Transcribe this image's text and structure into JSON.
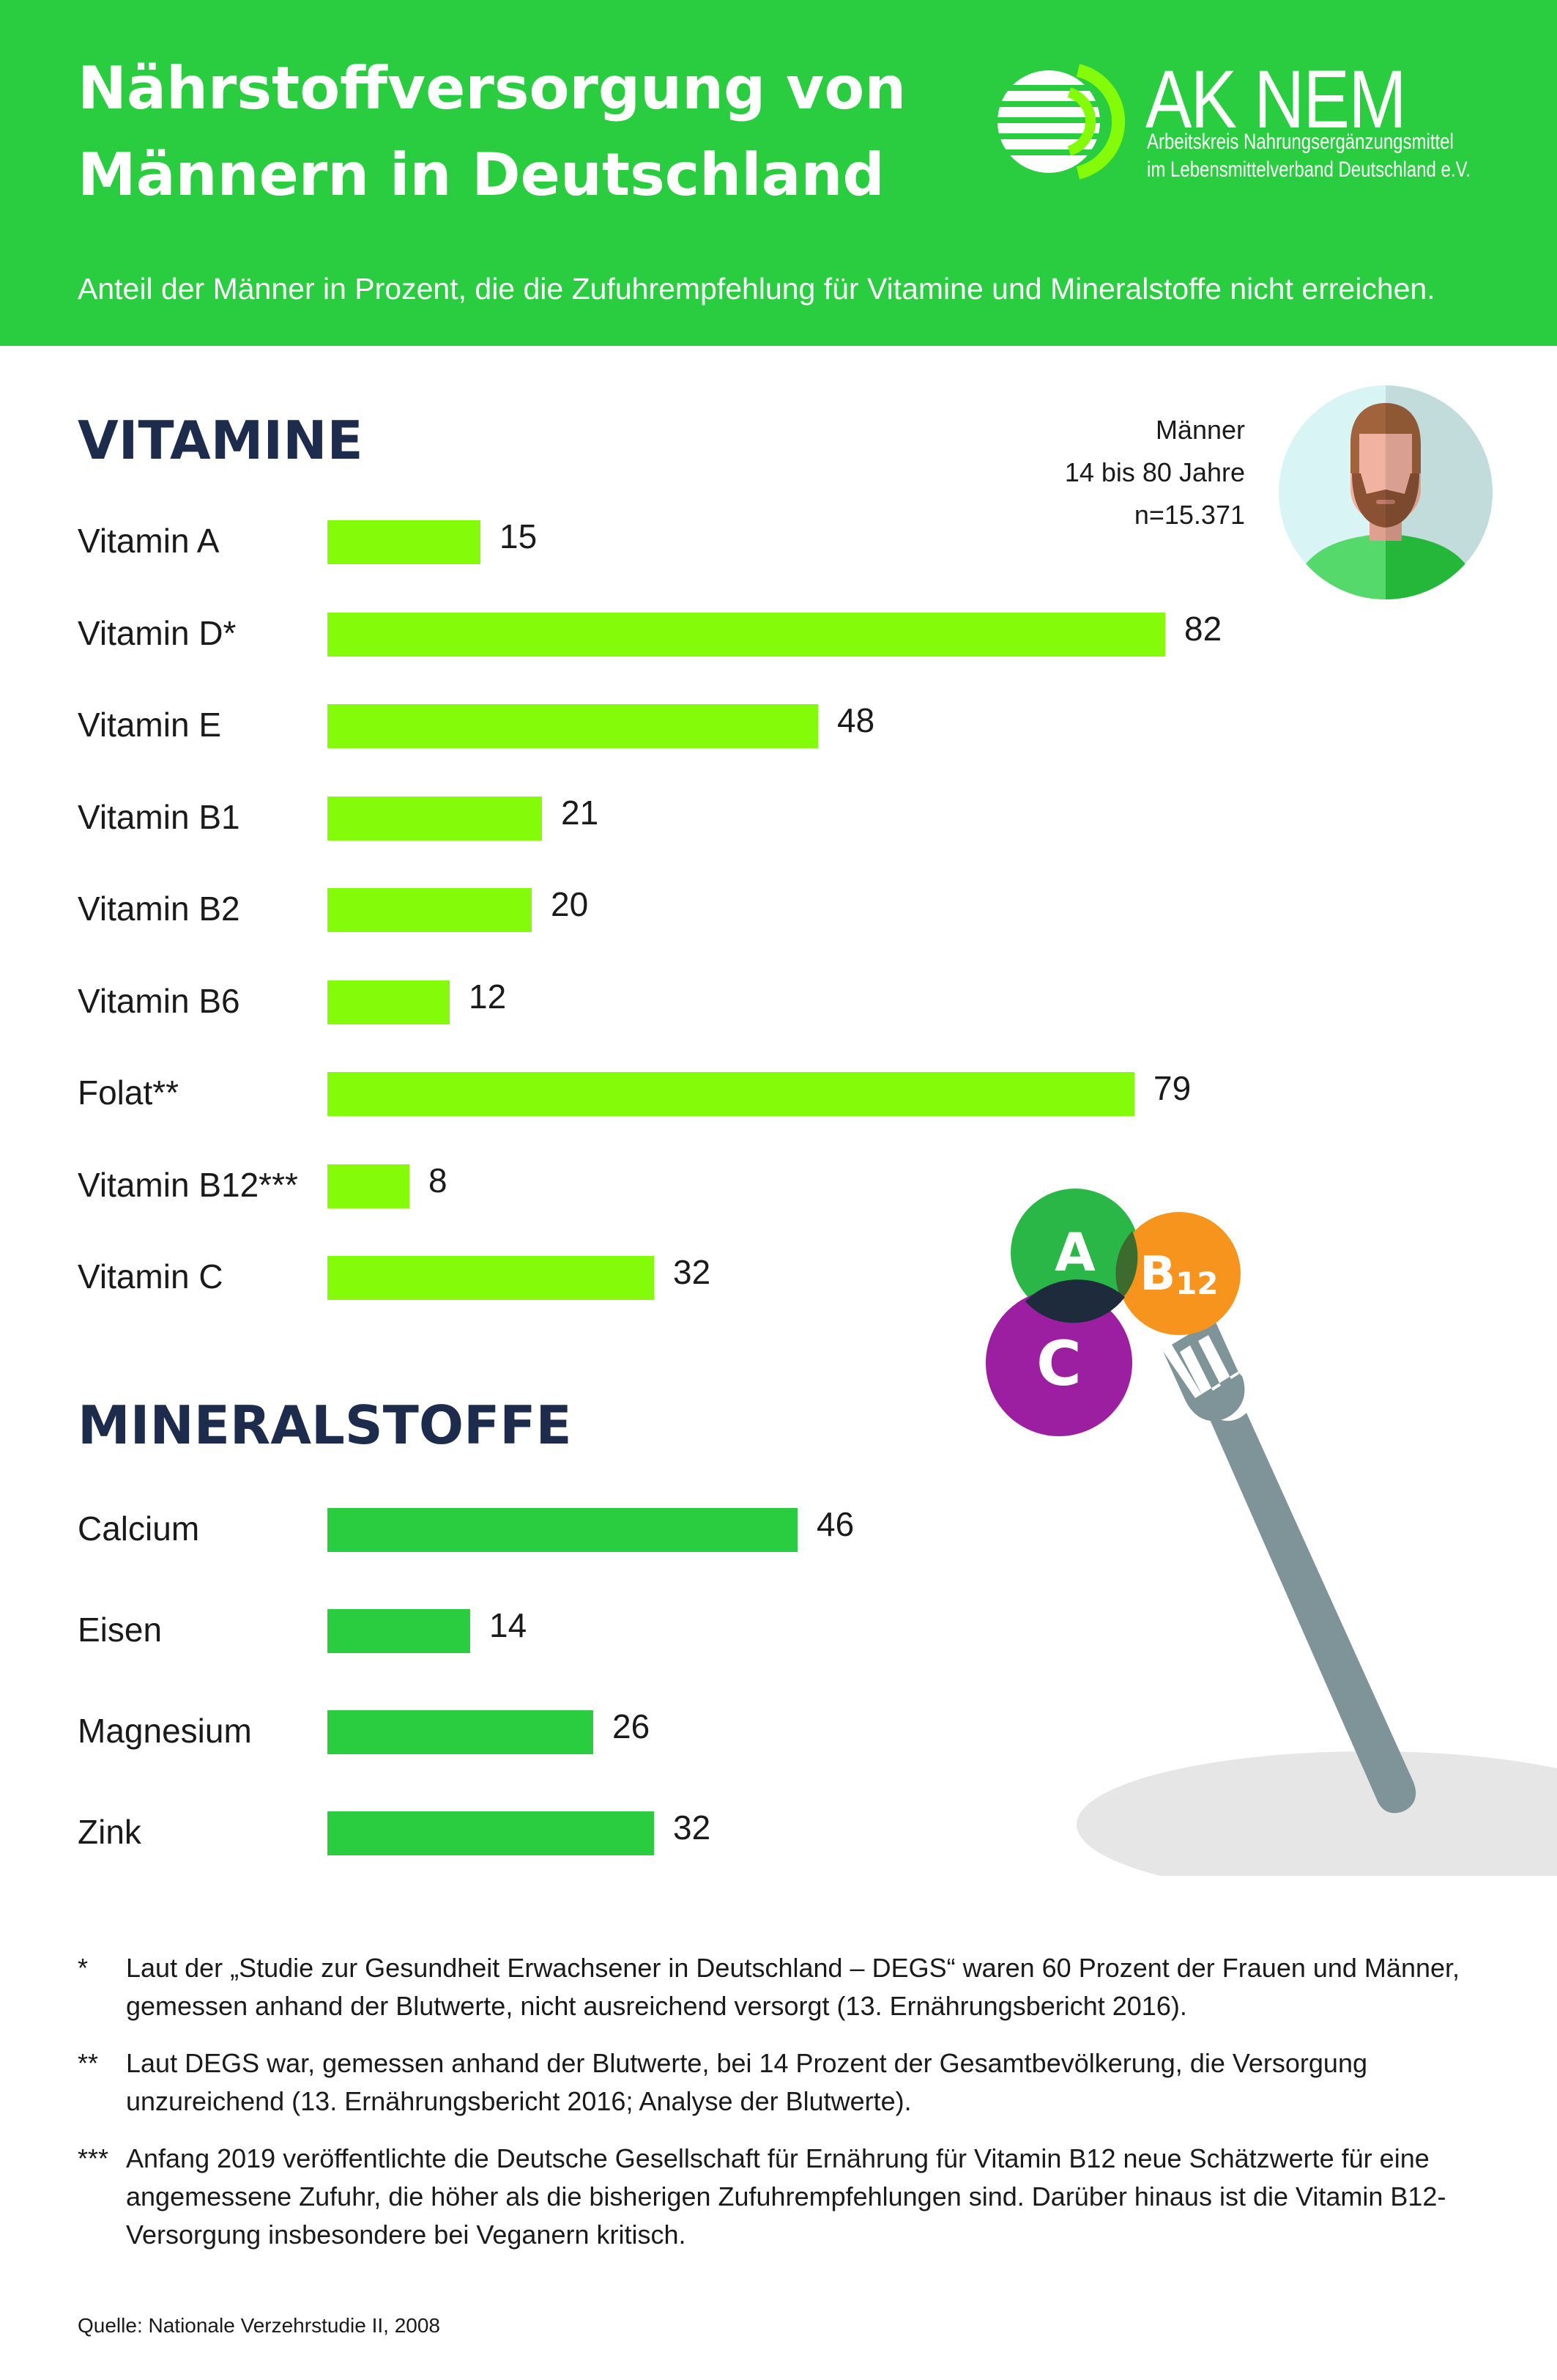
{
  "header": {
    "title_line1": "Nährstoffversorgung von",
    "title_line2": "Männern in Deutschland",
    "subtitle": "Anteil der Männer in Prozent, die die Zufuhrempfehlung für Vitamine und Mineralstoffe nicht erreichen.",
    "logo_name": "AK NEM",
    "logo_line1": "Arbeitskreis Nahrungsergänzungsmittel",
    "logo_line2": "im Lebensmittelverband Deutschland e.V."
  },
  "persona": {
    "line1": "Männer",
    "line2": "14 bis 80 Jahre",
    "line3": "n=15.371"
  },
  "colors": {
    "header_green": "#2acc40",
    "vitamin_bar": "#84fc09",
    "mineral_bar": "#2acc40",
    "heading": "#1d2b4d"
  },
  "chart_data": [
    {
      "type": "bar",
      "title": "VITAMINE",
      "orientation": "horizontal",
      "categories": [
        "Vitamin A",
        "Vitamin D*",
        "Vitamin E",
        "Vitamin B1",
        "Vitamin B2",
        "Vitamin B6",
        "Folat**",
        "Vitamin B12***",
        "Vitamin C"
      ],
      "values": [
        15,
        82,
        48,
        21,
        20,
        12,
        79,
        8,
        32
      ],
      "value_labels": [
        "15",
        "82",
        "48",
        "21",
        "20",
        "12",
        "79",
        "8",
        "32"
      ],
      "xlim": [
        0,
        100
      ],
      "grid": false
    },
    {
      "type": "bar",
      "title": "MINERALSTOFFE",
      "orientation": "horizontal",
      "categories": [
        "Calcium",
        "Eisen",
        "Magnesium",
        "Zink"
      ],
      "values": [
        46,
        14,
        26,
        32
      ],
      "value_labels": [
        "46",
        "14",
        "26",
        "32"
      ],
      "xlim": [
        0,
        100
      ],
      "grid": false
    }
  ],
  "illustration": {
    "ball_a": "A",
    "ball_b": "B",
    "ball_b_sub": "12",
    "ball_c": "C"
  },
  "footnotes": [
    {
      "marker": "*",
      "text": "Laut der „Studie zur Gesundheit Erwachsener in Deutschland – DEGS“ waren 60 Prozent der Frauen und Männer, gemessen anhand der Blutwerte, nicht ausreichend versorgt (13. Ernährungsbericht 2016)."
    },
    {
      "marker": "**",
      "text": "Laut DEGS war, gemessen anhand der Blutwerte, bei 14 Prozent der Gesamtbevölkerung, die Versorgung unzureichend (13. Ernährungsbericht 2016; Analyse der Blutwerte)."
    },
    {
      "marker": "***",
      "text": "Anfang 2019 veröffentlichte die Deutsche Gesellschaft für Ernährung für Vitamin B12 neue Schätzwerte für eine angemessene Zufuhr, die höher als die bisherigen Zufuhrempfehlungen sind. Darüber hinaus ist die Vitamin B12-Versorgung insbesondere bei Veganern kritisch."
    }
  ],
  "source": "Quelle: Nationale Verzehrstudie II, 2008"
}
